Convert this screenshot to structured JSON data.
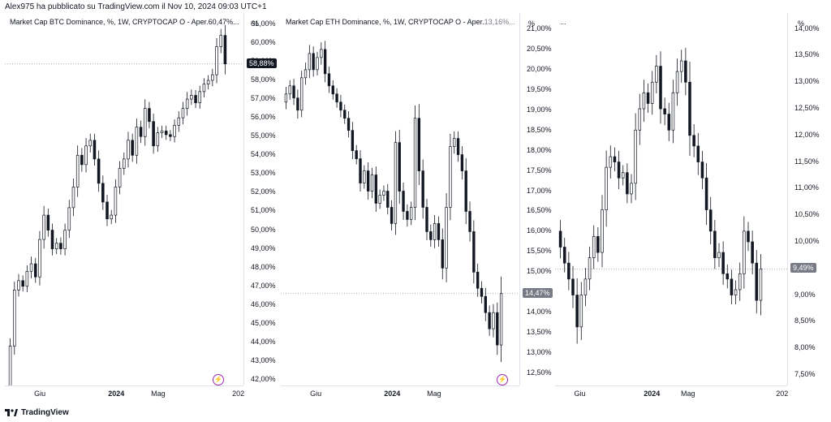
{
  "header": {
    "text": "Alex975 ha pubblicato su TradingView.com il Nov 10, 2024 09:03 UTC+1"
  },
  "footer": {
    "brand": "TradingView"
  },
  "colors": {
    "up": "#ffffff",
    "down": "#131722",
    "outline": "#131722",
    "grid": "#e0e3eb"
  },
  "chart_data": [
    {
      "type": "candlestick",
      "title": "Market Cap BTC Dominance, %, 1W, CRYPTOCAP",
      "open_label": "O - Aper.",
      "open_value": "60,47%...",
      "unit": "%",
      "price_label": "58,88%",
      "price": 58.88,
      "ylim": [
        41.7,
        61.6
      ],
      "yticks": [
        "61,00%",
        "60,00%",
        "59,00%",
        "58,00%",
        "57,00%",
        "56,00%",
        "55,00%",
        "54,00%",
        "53,00%",
        "52,00%",
        "51,00%",
        "50,00%",
        "49,00%",
        "48,00%",
        "47,00%",
        "46,00%",
        "45,00%",
        "44,00%",
        "43,00%",
        "42,00%"
      ],
      "ytick_values": [
        61,
        60,
        59,
        58,
        57,
        56,
        55,
        54,
        53,
        52,
        51,
        50,
        49,
        48,
        47,
        46,
        45,
        44,
        43,
        42
      ],
      "xticks": [
        {
          "label": "Giu",
          "pos": 0.15,
          "bold": false
        },
        {
          "label": "2024",
          "pos": 0.46,
          "bold": true
        },
        {
          "label": "Mag",
          "pos": 0.64,
          "bold": false
        },
        {
          "label": "202",
          "pos": 0.98,
          "bold": false
        }
      ],
      "closes": [
        43.8,
        46.8,
        47.3,
        47.0,
        47.8,
        48.2,
        47.5,
        49.5,
        50.8,
        50.0,
        49.0,
        49.3,
        49.0,
        50.0,
        51.2,
        52.3,
        54.0,
        53.5,
        54.5,
        54.8,
        53.8,
        52.5,
        51.5,
        50.6,
        50.8,
        52.3,
        53.3,
        53.8,
        54.8,
        54.0,
        55.5,
        55.0,
        56.5,
        55.8,
        54.5,
        55.2,
        55.3,
        55.1,
        55.0,
        55.6,
        56.0,
        56.5,
        57.0,
        57.2,
        56.8,
        57.4,
        57.8,
        58.0,
        58.3,
        59.8,
        60.4,
        58.88
      ],
      "ranges": [
        1.2,
        1.3,
        1.0,
        0.8,
        0.9,
        1.1,
        0.9,
        1.3,
        1.4,
        1.0,
        1.0,
        0.8,
        0.9,
        1.0,
        1.2,
        1.3,
        1.5,
        1.1,
        1.2,
        1.0,
        1.0,
        1.3,
        1.2,
        1.1,
        0.8,
        1.2,
        1.1,
        1.0,
        1.3,
        1.0,
        1.3,
        1.0,
        1.4,
        1.0,
        1.2,
        0.9,
        0.8,
        0.8,
        0.7,
        0.9,
        1.0,
        1.0,
        1.1,
        0.9,
        0.8,
        0.9,
        0.9,
        0.8,
        0.9,
        1.3,
        1.0,
        1.6
      ]
    },
    {
      "type": "candlestick",
      "title": "Market Cap ETH Dominance, %, 1W, CRYPTOCAP",
      "open_label": "O - Aper.",
      "open_value": "13,16%...",
      "unit": "%",
      "price_label": "14,47%",
      "price": 14.47,
      "ylim": [
        12.2,
        21.4
      ],
      "yticks": [
        "21,00%",
        "20,50%",
        "20,00%",
        "19,50%",
        "19,00%",
        "18,50%",
        "18,00%",
        "17,50%",
        "17,00%",
        "16,50%",
        "16,00%",
        "15,50%",
        "15,00%",
        "14,50%",
        "14,00%",
        "13,50%",
        "13,00%",
        "12,50%"
      ],
      "ytick_values": [
        21,
        20.5,
        20,
        19.5,
        19,
        18.5,
        18,
        17.5,
        17,
        16.5,
        16,
        15.5,
        15,
        14.5,
        14,
        13.5,
        13,
        12.5
      ],
      "xticks": [
        {
          "label": "Giu",
          "pos": 0.15,
          "bold": false
        },
        {
          "label": "2024",
          "pos": 0.46,
          "bold": true
        },
        {
          "label": "Mag",
          "pos": 0.64,
          "bold": false
        }
      ],
      "closes": [
        19.4,
        19.6,
        19.3,
        19.0,
        19.8,
        20.0,
        20.4,
        20.0,
        20.3,
        20.5,
        19.9,
        19.6,
        19.4,
        19.2,
        19.0,
        18.8,
        18.5,
        18.0,
        17.8,
        17.2,
        17.5,
        17.0,
        17.4,
        16.7,
        16.9,
        17.0,
        16.6,
        16.2,
        18.2,
        17.0,
        16.5,
        16.3,
        16.6,
        18.8,
        17.5,
        16.6,
        16.0,
        15.8,
        16.2,
        15.8,
        15.1,
        16.6,
        18.1,
        18.3,
        17.9,
        17.5,
        16.5,
        16.0,
        15.0,
        14.6,
        14.4,
        14.0,
        13.6,
        14.0,
        13.2,
        14.47
      ],
      "ranges": [
        0.5,
        0.4,
        0.5,
        0.6,
        0.5,
        0.5,
        0.6,
        0.5,
        0.4,
        0.5,
        0.6,
        0.5,
        0.4,
        0.4,
        0.5,
        0.4,
        0.5,
        0.6,
        0.4,
        0.6,
        0.4,
        0.6,
        0.5,
        0.6,
        0.4,
        0.4,
        0.5,
        0.5,
        0.8,
        0.9,
        0.6,
        0.5,
        0.4,
        0.9,
        1.0,
        0.8,
        0.6,
        0.5,
        0.6,
        0.5,
        0.8,
        1.0,
        0.9,
        0.5,
        0.5,
        0.6,
        0.9,
        0.7,
        0.8,
        0.6,
        0.5,
        0.6,
        0.5,
        0.6,
        0.7,
        1.2
      ]
    },
    {
      "type": "candlestick",
      "title": "...",
      "open_label": "",
      "open_value": "",
      "unit": "%",
      "price_label": "9,49%",
      "price": 9.49,
      "ylim": [
        7.3,
        14.3
      ],
      "yticks": [
        "14,00%",
        "13,50%",
        "13,00%",
        "12,50%",
        "12,00%",
        "11,50%",
        "11,00%",
        "10,50%",
        "10,00%",
        "9,50%",
        "9,00%",
        "8,50%",
        "8,00%",
        "7,50%"
      ],
      "ytick_values": [
        14,
        13.5,
        13,
        12.5,
        12,
        11.5,
        11,
        10.5,
        10,
        9.5,
        9,
        8.5,
        8,
        7.5
      ],
      "xticks": [
        {
          "label": "Giu",
          "pos": 0.11,
          "bold": false
        },
        {
          "label": "2024",
          "pos": 0.41,
          "bold": true
        },
        {
          "label": "Mag",
          "pos": 0.57,
          "bold": false
        },
        {
          "label": "202",
          "pos": 0.98,
          "bold": false
        }
      ],
      "closes": [
        9.9,
        9.6,
        9.3,
        9.0,
        8.4,
        9.0,
        9.3,
        9.7,
        10.1,
        9.8,
        10.6,
        11.4,
        11.6,
        11.5,
        11.2,
        11.3,
        10.9,
        11.1,
        12.1,
        12.5,
        12.8,
        12.6,
        13.0,
        13.3,
        12.5,
        12.4,
        12.1,
        12.8,
        13.2,
        13.4,
        13.0,
        12.0,
        11.8,
        11.5,
        11.2,
        10.6,
        10.2,
        9.7,
        9.8,
        9.4,
        9.3,
        9.0,
        9.1,
        9.4,
        10.2,
        10.0,
        9.6,
        8.9,
        9.49
      ],
      "ranges": [
        0.6,
        0.5,
        0.6,
        0.7,
        0.9,
        0.7,
        0.6,
        0.6,
        0.6,
        0.5,
        0.8,
        0.9,
        0.6,
        0.5,
        0.6,
        0.4,
        0.5,
        0.5,
        0.9,
        0.8,
        0.7,
        0.5,
        0.6,
        0.6,
        0.8,
        0.6,
        0.6,
        0.7,
        0.7,
        0.6,
        0.7,
        1.1,
        0.6,
        0.7,
        0.6,
        0.8,
        0.7,
        0.6,
        0.5,
        0.6,
        0.5,
        0.5,
        0.5,
        0.6,
        0.8,
        0.5,
        0.6,
        0.7,
        0.8
      ]
    }
  ]
}
